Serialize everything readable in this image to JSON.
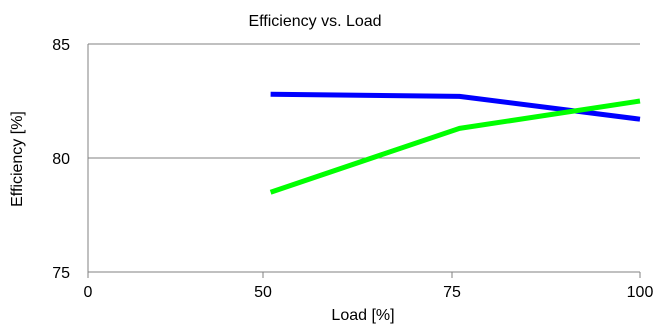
{
  "chart_data": {
    "type": "line",
    "title": "Efficiency vs. Load",
    "xlabel": "Load [%]",
    "ylabel": "Efficiency [%]",
    "xlim": [
      0,
      100
    ],
    "ylim": [
      75,
      85
    ],
    "x_scale": "nonlinear",
    "x_ticks": [
      {
        "value": 0,
        "label": "0"
      },
      {
        "value": 50,
        "label": "50"
      },
      {
        "value": 75,
        "label": "75"
      },
      {
        "value": 100,
        "label": "100"
      }
    ],
    "y_ticks": [
      {
        "value": 75,
        "label": "75"
      },
      {
        "value": 80,
        "label": "80"
      },
      {
        "value": 85,
        "label": "85"
      }
    ],
    "grid": {
      "horizontal": true,
      "vertical": false
    },
    "legend": "none",
    "series": [
      {
        "color": "#0000ff",
        "x": [
          51,
          76,
          100
        ],
        "y": [
          82.8,
          82.7,
          81.7
        ]
      },
      {
        "color": "#00ff00",
        "x": [
          51,
          76,
          100
        ],
        "y": [
          78.5,
          81.3,
          82.5
        ]
      }
    ]
  }
}
